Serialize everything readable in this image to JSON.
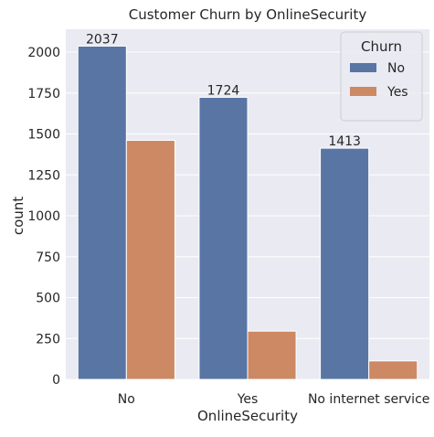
{
  "chart_data": {
    "type": "bar",
    "title": "Customer Churn by OnlineSecurity",
    "xlabel": "OnlineSecurity",
    "ylabel": "count",
    "categories": [
      "No",
      "Yes",
      "No internet service"
    ],
    "series": [
      {
        "name": "No",
        "values": [
          2037,
          1724,
          1413
        ],
        "color": "#5875a4"
      },
      {
        "name": "Yes",
        "values": [
          1461,
          295,
          113
        ],
        "color": "#cc8963"
      }
    ],
    "data_labels": [
      "2037",
      "1724",
      "1413"
    ],
    "ylim": [
      0,
      2140
    ],
    "yticks": [
      0,
      250,
      500,
      750,
      1000,
      1250,
      1500,
      1750,
      2000
    ],
    "ytick_labels": [
      "0",
      "250",
      "500",
      "750",
      "1000",
      "1250",
      "1500",
      "1750",
      "2000"
    ],
    "grid": true,
    "legend": {
      "title": "Churn",
      "placement": "top-right",
      "entries": [
        "No",
        "Yes"
      ]
    },
    "colors": {
      "plot_background": "#eaeaf2",
      "grid": "#ffffff",
      "text": "#262626"
    }
  }
}
